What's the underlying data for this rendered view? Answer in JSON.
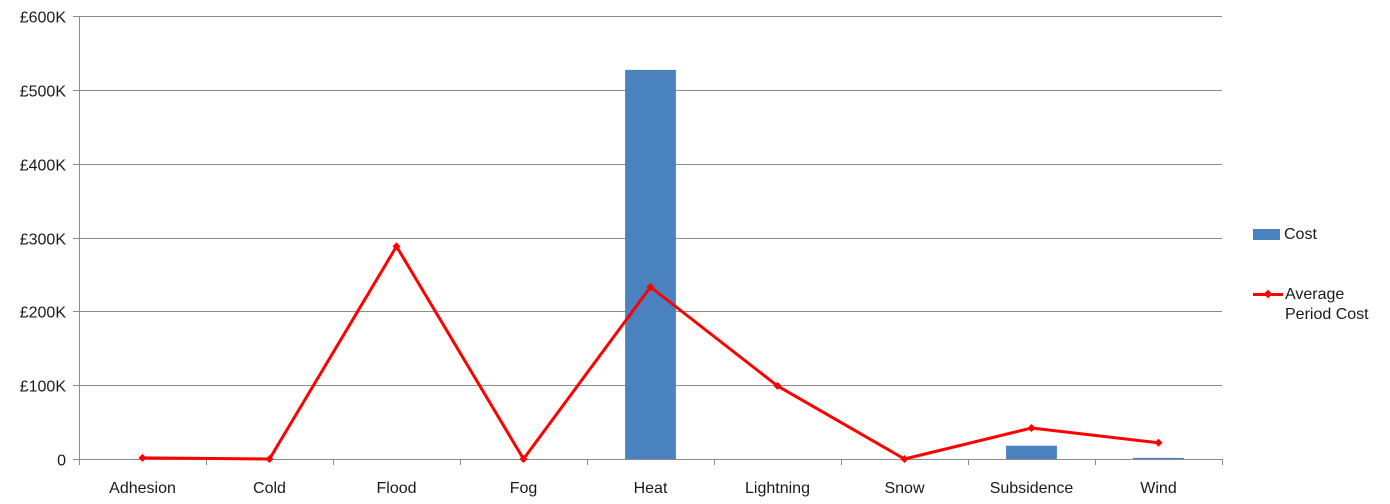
{
  "chart_data": {
    "type": "bar",
    "categories": [
      "Adhesion",
      "Cold",
      "Flood",
      "Fog",
      "Heat",
      "Lightning",
      "Snow",
      "Subsidence",
      "Wind"
    ],
    "series": [
      {
        "name": "Cost",
        "type": "bar",
        "color": "#4a81bf",
        "values": [
          0,
          0,
          0,
          0,
          527000,
          0,
          0,
          18000,
          1500
        ]
      },
      {
        "name": "Average Period Cost",
        "type": "line",
        "color": "#ff0000",
        "values": [
          1500,
          0,
          288000,
          0,
          233000,
          99000,
          0,
          42000,
          22000
        ]
      }
    ],
    "ylim": [
      0,
      600000
    ],
    "yticks": [
      0,
      100000,
      200000,
      300000,
      400000,
      500000,
      600000
    ],
    "ytick_labels": [
      "0",
      "£100K",
      "£200K",
      "£300K",
      "£400K",
      "£500K",
      "£600K"
    ],
    "grid": true,
    "legend_position": "right"
  }
}
